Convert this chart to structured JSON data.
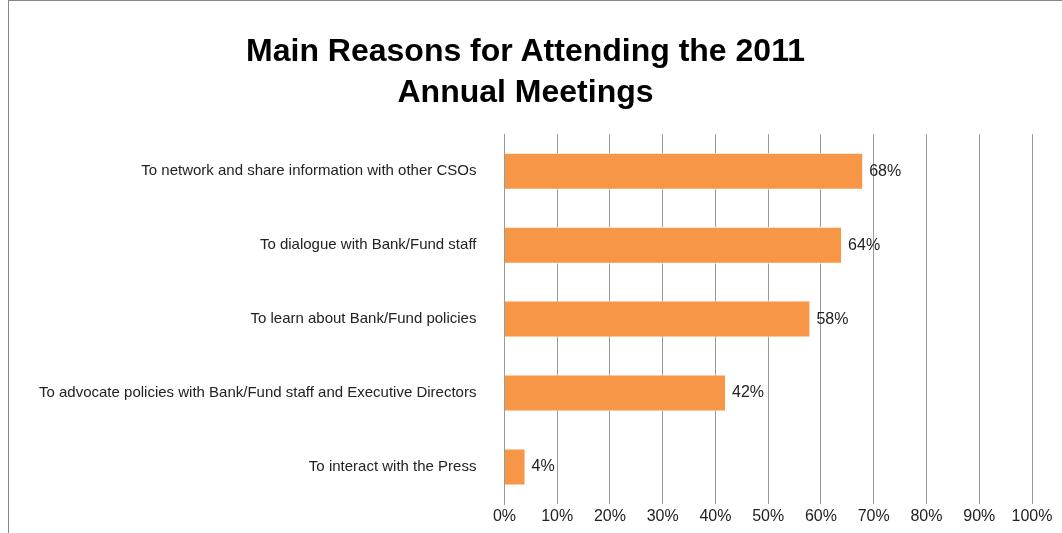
{
  "chart_data": {
    "type": "bar",
    "orientation": "horizontal",
    "title": "Main Reasons for Attending the 2011 Annual Meetings",
    "categories": [
      "To network and share information with other CSOs",
      "To dialogue with Bank/Fund staff",
      "To learn about Bank/Fund policies",
      "To advocate policies with Bank/Fund staff and Executive Directors",
      "To interact with the Press"
    ],
    "values": [
      68,
      64,
      58,
      42,
      4
    ],
    "value_labels": [
      "68%",
      "64%",
      "58%",
      "42%",
      "4%"
    ],
    "color": "#f79646",
    "xlim": [
      0,
      100
    ],
    "xticks": [
      {
        "value": 0,
        "label": "0%"
      },
      {
        "value": 10,
        "label": "10%"
      },
      {
        "value": 20,
        "label": "20%"
      },
      {
        "value": 30,
        "label": "30%"
      },
      {
        "value": 40,
        "label": "40%"
      },
      {
        "value": 50,
        "label": "50%"
      },
      {
        "value": 60,
        "label": "60%"
      },
      {
        "value": 70,
        "label": "70%"
      },
      {
        "value": 80,
        "label": "80%"
      },
      {
        "value": 90,
        "label": "90%"
      },
      {
        "value": 100,
        "label": "100%"
      }
    ],
    "grid": "x",
    "legend": false
  }
}
